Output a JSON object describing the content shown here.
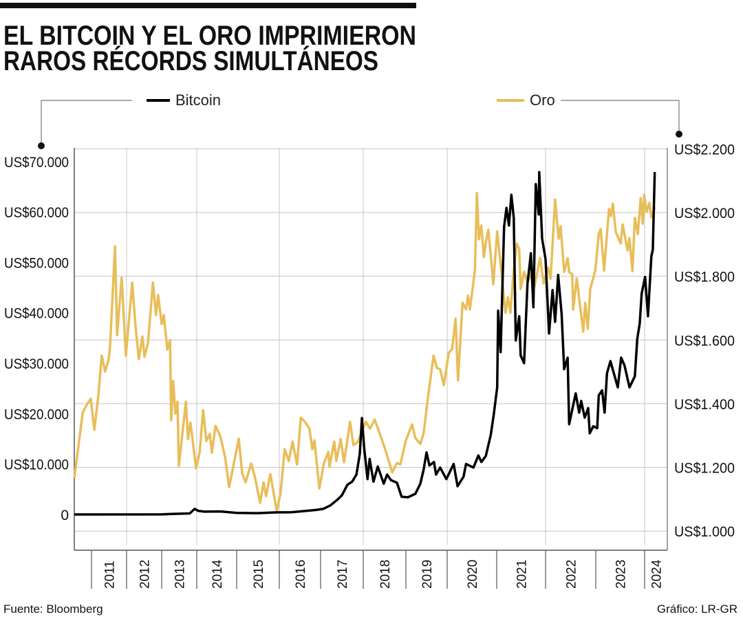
{
  "title": {
    "line1": "EL BITCOIN Y EL ORO IMPRIMIERON",
    "line2": "RAROS RÉCORDS SIMULTÁNEOS"
  },
  "footer": {
    "source": "Fuente: Bloomberg",
    "credit": "Gráfico: LR-GR"
  },
  "chart_data": {
    "type": "line",
    "title": "EL BITCOIN Y EL ORO IMPRIMIERON RAROS RÉCORDS SIMULTÁNEOS",
    "xlabel": "",
    "grid": true,
    "legend_placement": "top",
    "x_ticks": [
      "2011",
      "2012",
      "2013",
      "2014",
      "2015",
      "2016",
      "2017",
      "2018",
      "2019",
      "2020",
      "2021",
      "2022",
      "2023",
      "2024"
    ],
    "y_left": {
      "ylim": [
        -7100,
        72700
      ],
      "ticks": [
        0,
        10000,
        20000,
        30000,
        40000,
        50000,
        60000,
        70000
      ],
      "tick_labels": [
        "0",
        "US$10.000",
        "US$20.000",
        "US$30.000",
        "US$40.000",
        "US$50.000",
        "US$60.000",
        "US$70.000"
      ]
    },
    "y_right": {
      "ylim": [
        940,
        2203
      ],
      "ticks": [
        1000,
        1200,
        1400,
        1600,
        1800,
        2000,
        2200
      ],
      "tick_labels": [
        "US$1.000",
        "US$1.200",
        "US$1.400",
        "US$1.600",
        "US$1.800",
        "US$2.000",
        "US$2.200"
      ]
    },
    "series": [
      {
        "name": "Bitcoin",
        "axis": "left",
        "color": "#000000",
        "points": [
          [
            2010.51,
            0
          ],
          [
            2012.99,
            10
          ],
          [
            2013.3,
            100
          ],
          [
            2013.8,
            200
          ],
          [
            2013.94,
            1100
          ],
          [
            2014.04,
            700
          ],
          [
            2014.19,
            550
          ],
          [
            2014.6,
            600
          ],
          [
            2015.0,
            300
          ],
          [
            2015.5,
            250
          ],
          [
            2015.9,
            400
          ],
          [
            2016.3,
            450
          ],
          [
            2016.9,
            900
          ],
          [
            2017.06,
            1100
          ],
          [
            2017.23,
            1800
          ],
          [
            2017.39,
            2900
          ],
          [
            2017.5,
            3800
          ],
          [
            2017.63,
            5900
          ],
          [
            2017.74,
            6500
          ],
          [
            2017.84,
            7900
          ],
          [
            2017.92,
            12000
          ],
          [
            2017.97,
            19100
          ],
          [
            2018.02,
            13400
          ],
          [
            2018.1,
            7000
          ],
          [
            2018.15,
            11000
          ],
          [
            2018.24,
            6500
          ],
          [
            2018.34,
            9500
          ],
          [
            2018.48,
            6100
          ],
          [
            2018.56,
            7900
          ],
          [
            2018.65,
            6800
          ],
          [
            2018.79,
            6300
          ],
          [
            2018.9,
            3500
          ],
          [
            2019.05,
            3400
          ],
          [
            2019.23,
            4100
          ],
          [
            2019.35,
            6100
          ],
          [
            2019.43,
            8900
          ],
          [
            2019.5,
            12300
          ],
          [
            2019.57,
            9700
          ],
          [
            2019.68,
            10400
          ],
          [
            2019.73,
            7900
          ],
          [
            2019.83,
            9300
          ],
          [
            2019.98,
            7000
          ],
          [
            2020.13,
            10000
          ],
          [
            2020.21,
            5600
          ],
          [
            2020.33,
            7500
          ],
          [
            2020.38,
            10000
          ],
          [
            2020.53,
            9300
          ],
          [
            2020.63,
            11700
          ],
          [
            2020.69,
            10400
          ],
          [
            2020.78,
            11600
          ],
          [
            2020.88,
            15800
          ],
          [
            2020.94,
            19800
          ],
          [
            2021.01,
            25200
          ],
          [
            2021.03,
            40400
          ],
          [
            2021.08,
            32200
          ],
          [
            2021.15,
            57000
          ],
          [
            2021.2,
            60800
          ],
          [
            2021.25,
            57300
          ],
          [
            2021.3,
            63400
          ],
          [
            2021.35,
            58800
          ],
          [
            2021.39,
            34500
          ],
          [
            2021.46,
            39300
          ],
          [
            2021.49,
            31500
          ],
          [
            2021.56,
            30000
          ],
          [
            2021.63,
            45700
          ],
          [
            2021.7,
            51800
          ],
          [
            2021.75,
            41100
          ],
          [
            2021.8,
            65500
          ],
          [
            2021.86,
            59500
          ],
          [
            2021.87,
            67900
          ],
          [
            2021.93,
            54700
          ],
          [
            2022.0,
            50600
          ],
          [
            2022.07,
            35900
          ],
          [
            2022.14,
            44500
          ],
          [
            2022.19,
            38200
          ],
          [
            2022.25,
            47500
          ],
          [
            2022.32,
            39700
          ],
          [
            2022.37,
            28800
          ],
          [
            2022.44,
            31100
          ],
          [
            2022.47,
            17900
          ],
          [
            2022.6,
            24000
          ],
          [
            2022.67,
            20200
          ],
          [
            2022.71,
            22500
          ],
          [
            2022.78,
            19200
          ],
          [
            2022.85,
            21100
          ],
          [
            2022.88,
            16100
          ],
          [
            2022.95,
            17500
          ],
          [
            2023.03,
            17100
          ],
          [
            2023.06,
            23600
          ],
          [
            2023.13,
            24600
          ],
          [
            2023.18,
            20200
          ],
          [
            2023.23,
            28000
          ],
          [
            2023.3,
            30400
          ],
          [
            2023.45,
            25200
          ],
          [
            2023.52,
            31100
          ],
          [
            2023.59,
            29500
          ],
          [
            2023.69,
            25200
          ],
          [
            2023.8,
            27400
          ],
          [
            2023.85,
            34800
          ],
          [
            2023.9,
            37900
          ],
          [
            2023.94,
            43800
          ],
          [
            2024.01,
            47100
          ],
          [
            2024.07,
            39300
          ],
          [
            2024.14,
            51200
          ],
          [
            2024.17,
            52500
          ],
          [
            2024.21,
            67900
          ]
        ]
      },
      {
        "name": "Oro",
        "axis": "right",
        "color": "#E8BE5A",
        "points": [
          [
            2010.51,
            1166
          ],
          [
            2010.75,
            1372
          ],
          [
            2010.88,
            1400
          ],
          [
            2010.98,
            1415
          ],
          [
            2011.08,
            1318
          ],
          [
            2011.2,
            1430
          ],
          [
            2011.29,
            1551
          ],
          [
            2011.39,
            1501
          ],
          [
            2011.49,
            1540
          ],
          [
            2011.53,
            1581
          ],
          [
            2011.67,
            1894
          ],
          [
            2011.73,
            1615
          ],
          [
            2011.86,
            1795
          ],
          [
            2011.98,
            1551
          ],
          [
            2012.16,
            1780
          ],
          [
            2012.25,
            1648
          ],
          [
            2012.35,
            1540
          ],
          [
            2012.45,
            1611
          ],
          [
            2012.51,
            1547
          ],
          [
            2012.61,
            1590
          ],
          [
            2012.75,
            1780
          ],
          [
            2012.84,
            1678
          ],
          [
            2012.9,
            1741
          ],
          [
            2013.0,
            1650
          ],
          [
            2013.06,
            1678
          ],
          [
            2013.16,
            1570
          ],
          [
            2013.24,
            1600
          ],
          [
            2013.27,
            1348
          ],
          [
            2013.33,
            1471
          ],
          [
            2013.39,
            1369
          ],
          [
            2013.45,
            1406
          ],
          [
            2013.49,
            1205
          ],
          [
            2013.69,
            1406
          ],
          [
            2013.75,
            1289
          ],
          [
            2013.82,
            1341
          ],
          [
            2013.98,
            1197
          ],
          [
            2014.07,
            1246
          ],
          [
            2014.16,
            1380
          ],
          [
            2014.24,
            1283
          ],
          [
            2014.33,
            1305
          ],
          [
            2014.38,
            1246
          ],
          [
            2014.47,
            1330
          ],
          [
            2014.59,
            1298
          ],
          [
            2014.71,
            1233
          ],
          [
            2014.81,
            1138
          ],
          [
            2014.93,
            1212
          ],
          [
            2015.05,
            1290
          ],
          [
            2015.13,
            1181
          ],
          [
            2015.21,
            1153
          ],
          [
            2015.34,
            1212
          ],
          [
            2015.42,
            1175
          ],
          [
            2015.55,
            1089
          ],
          [
            2015.63,
            1153
          ],
          [
            2015.69,
            1110
          ],
          [
            2015.79,
            1179
          ],
          [
            2015.94,
            1063
          ],
          [
            2016.03,
            1119
          ],
          [
            2016.13,
            1257
          ],
          [
            2016.23,
            1220
          ],
          [
            2016.32,
            1281
          ],
          [
            2016.43,
            1209
          ],
          [
            2016.52,
            1356
          ],
          [
            2016.62,
            1343
          ],
          [
            2016.73,
            1322
          ],
          [
            2016.8,
            1257
          ],
          [
            2016.85,
            1285
          ],
          [
            2016.97,
            1134
          ],
          [
            2017.08,
            1214
          ],
          [
            2017.18,
            1248
          ],
          [
            2017.21,
            1203
          ],
          [
            2017.32,
            1281
          ],
          [
            2017.37,
            1220
          ],
          [
            2017.47,
            1289
          ],
          [
            2017.55,
            1216
          ],
          [
            2017.69,
            1343
          ],
          [
            2017.77,
            1270
          ],
          [
            2017.87,
            1279
          ],
          [
            2018.06,
            1343
          ],
          [
            2018.16,
            1322
          ],
          [
            2018.27,
            1350
          ],
          [
            2018.5,
            1263
          ],
          [
            2018.68,
            1184
          ],
          [
            2018.79,
            1214
          ],
          [
            2018.87,
            1209
          ],
          [
            2019.0,
            1285
          ],
          [
            2019.15,
            1335
          ],
          [
            2019.23,
            1292
          ],
          [
            2019.35,
            1274
          ],
          [
            2019.43,
            1307
          ],
          [
            2019.53,
            1415
          ],
          [
            2019.67,
            1551
          ],
          [
            2019.75,
            1512
          ],
          [
            2019.83,
            1508
          ],
          [
            2019.92,
            1458
          ],
          [
            2020.03,
            1559
          ],
          [
            2020.1,
            1572
          ],
          [
            2020.17,
            1667
          ],
          [
            2020.22,
            1473
          ],
          [
            2020.31,
            1717
          ],
          [
            2020.38,
            1696
          ],
          [
            2020.42,
            1739
          ],
          [
            2020.46,
            1696
          ],
          [
            2020.56,
            1819
          ],
          [
            2020.6,
            2061
          ],
          [
            2020.64,
            1916
          ],
          [
            2020.69,
            1959
          ],
          [
            2020.74,
            1860
          ],
          [
            2020.79,
            1916
          ],
          [
            2020.83,
            1946
          ],
          [
            2020.88,
            1866
          ],
          [
            2020.93,
            1775
          ],
          [
            2021.01,
            1941
          ],
          [
            2021.07,
            1851
          ],
          [
            2021.18,
            1685
          ],
          [
            2021.23,
            1734
          ],
          [
            2021.28,
            1685
          ],
          [
            2021.35,
            1821
          ],
          [
            2021.41,
            1903
          ],
          [
            2021.46,
            1886
          ],
          [
            2021.49,
            1760
          ],
          [
            2021.56,
            1814
          ],
          [
            2021.63,
            1782
          ],
          [
            2021.7,
            1806
          ],
          [
            2021.77,
            1767
          ],
          [
            2021.89,
            1857
          ],
          [
            2021.96,
            1777
          ],
          [
            2022.05,
            1827
          ],
          [
            2022.1,
            1792
          ],
          [
            2022.19,
            2041
          ],
          [
            2022.26,
            1918
          ],
          [
            2022.3,
            1957
          ],
          [
            2022.37,
            1814
          ],
          [
            2022.44,
            1857
          ],
          [
            2022.47,
            1814
          ],
          [
            2022.53,
            1806
          ],
          [
            2022.55,
            1695
          ],
          [
            2022.62,
            1793
          ],
          [
            2022.75,
            1626
          ],
          [
            2022.79,
            1717
          ],
          [
            2022.84,
            1635
          ],
          [
            2022.89,
            1760
          ],
          [
            2022.99,
            1818
          ],
          [
            2023.06,
            1933
          ],
          [
            2023.1,
            1948
          ],
          [
            2023.17,
            1818
          ],
          [
            2023.27,
            2011
          ],
          [
            2023.31,
            1989
          ],
          [
            2023.35,
            2028
          ],
          [
            2023.41,
            1939
          ],
          [
            2023.51,
            1903
          ],
          [
            2023.55,
            1963
          ],
          [
            2023.65,
            1881
          ],
          [
            2023.69,
            1920
          ],
          [
            2023.75,
            1816
          ],
          [
            2023.8,
            1983
          ],
          [
            2023.86,
            1933
          ],
          [
            2023.92,
            2045
          ],
          [
            2023.96,
            1965
          ],
          [
            2023.99,
            2056
          ],
          [
            2024.04,
            2002
          ],
          [
            2024.1,
            2030
          ],
          [
            2024.14,
            1985
          ],
          [
            2024.21,
            2017
          ]
        ]
      }
    ]
  }
}
